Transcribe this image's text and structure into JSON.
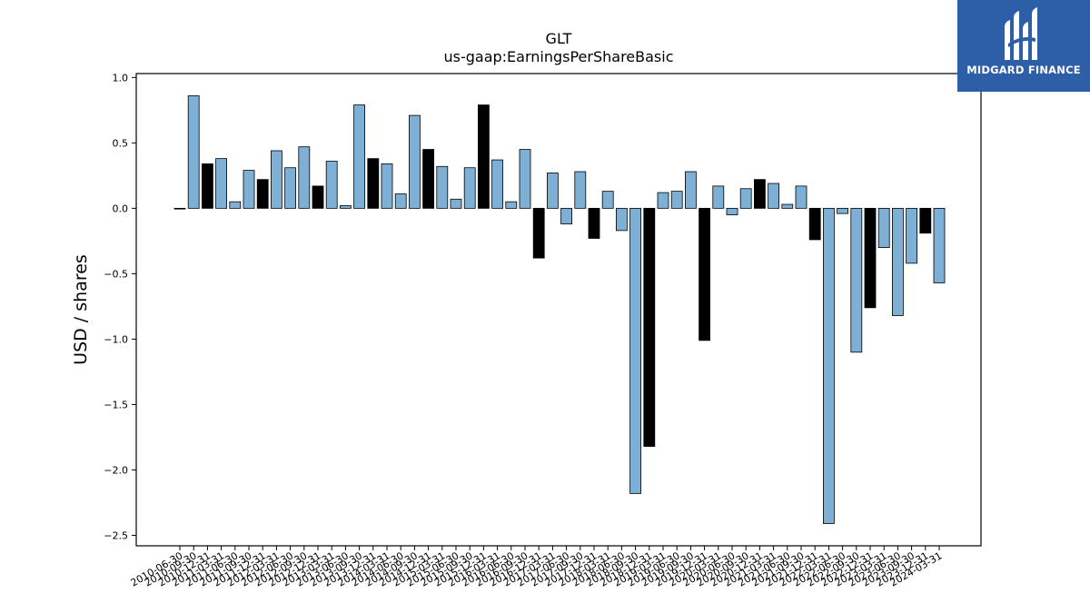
{
  "brand": {
    "name": "MIDGARD FINANCE",
    "background": "#2d5ea8"
  },
  "chart_data": {
    "type": "bar",
    "title": "GLT",
    "subtitle": "us-gaap:EarningsPerShareBasic",
    "ylabel": "USD / shares",
    "xlabel": "",
    "ylim": [
      -2.58,
      1.03
    ],
    "yticks": [
      1.0,
      0.5,
      0.0,
      -0.5,
      -1.0,
      -1.5,
      -2.0,
      -2.5
    ],
    "ytick_labels": [
      "1.0",
      "0.5",
      "0.0",
      "−0.5",
      "−1.0",
      "−1.5",
      "−2.0",
      "−2.5"
    ],
    "grid": false,
    "colors": {
      "quarter": "#7eb0d5",
      "annual": "#000000"
    },
    "categories": [
      "2010-06-30",
      "2010-09-30",
      "2010-12-31",
      "2011-03-31",
      "2011-06-30",
      "2011-09-30",
      "2011-12-31",
      "2012-03-31",
      "2012-06-30",
      "2012-09-30",
      "2012-12-31",
      "2013-03-31",
      "2013-06-30",
      "2013-09-30",
      "2013-12-31",
      "2014-03-31",
      "2014-06-30",
      "2014-09-30",
      "2014-12-31",
      "2015-03-31",
      "2015-06-30",
      "2015-09-30",
      "2015-12-31",
      "2016-03-31",
      "2016-06-30",
      "2016-09-30",
      "2016-12-31",
      "2017-03-31",
      "2017-06-30",
      "2017-09-30",
      "2017-12-31",
      "2018-03-31",
      "2018-06-30",
      "2018-09-30",
      "2018-12-31",
      "2019-03-31",
      "2019-06-30",
      "2019-09-30",
      "2019-12-31",
      "2020-03-31",
      "2020-06-30",
      "2020-09-30",
      "2020-12-31",
      "2021-03-31",
      "2021-06-30",
      "2021-09-30",
      "2021-12-31",
      "2022-03-31",
      "2022-06-30",
      "2022-09-30",
      "2022-12-31",
      "2023-03-31",
      "2023-06-30",
      "2023-09-30",
      "2023-12-31",
      "2024-03-31"
    ],
    "tick_labels": [
      "2010-06-30",
      "2010-09-30",
      "2010-12-31",
      "2011-03-31",
      "2011-06-30",
      "2011-09-30",
      "2011-12-31",
      "2012-03-31",
      "2012-06-30",
      "2012-09-30",
      "2012-12-31",
      "2013-03-31",
      "2013-06-30",
      "2013-09-30",
      "2013-12-31",
      "2014-03-31",
      "2014-06-30",
      "2014-09-30",
      "2014-12-31",
      "2015-03-31",
      "2015-06-30",
      "2015-09-30",
      "2015-12-31",
      "2016-03-31",
      "2016-06-30",
      "2016-09-30",
      "2016-12-31",
      "2017-03-31",
      "2017-06-30",
      "2017-09-30",
      "2017-12-31",
      "2018-03-31",
      "2018-06-30",
      "2018-09-30",
      "2018-12-31",
      "2019-03-31",
      "2019-06-30",
      "2019-09-30",
      "2019-12-31",
      "2020-03-31",
      "2020-06-30",
      "2020-09-30",
      "2020-12-31",
      "2021-03-31",
      "2021-06-30",
      "2021-09-30",
      "2021-12-31",
      "2022-03-31",
      "2022-06-30",
      "2022-09-30",
      "2022-12-31",
      "2023-03-31",
      "2023-06-30",
      "2023-09-30",
      "2023-12-31",
      "2024-03-31"
    ],
    "values": [
      0.0,
      0.86,
      0.34,
      0.38,
      0.05,
      0.29,
      0.22,
      0.44,
      0.31,
      0.47,
      0.17,
      0.36,
      0.02,
      0.79,
      0.38,
      0.34,
      0.11,
      0.71,
      0.45,
      0.32,
      0.07,
      0.31,
      0.79,
      0.37,
      0.05,
      0.45,
      -0.38,
      0.27,
      -0.12,
      0.28,
      -0.23,
      0.13,
      -0.17,
      -2.18,
      -1.82,
      0.12,
      0.13,
      0.28,
      -1.01,
      0.17,
      -0.05,
      0.15,
      0.22,
      0.19,
      0.03,
      0.17,
      -0.24,
      -2.41,
      -0.04,
      -1.1,
      -0.76,
      -0.3,
      -0.82,
      -0.42,
      -0.19,
      -0.57
    ],
    "annual": [
      false,
      false,
      true,
      false,
      false,
      false,
      true,
      false,
      false,
      false,
      true,
      false,
      false,
      false,
      true,
      false,
      false,
      false,
      true,
      false,
      false,
      false,
      true,
      false,
      false,
      false,
      true,
      false,
      false,
      false,
      true,
      false,
      false,
      false,
      true,
      false,
      false,
      false,
      true,
      false,
      false,
      false,
      true,
      false,
      false,
      false,
      true,
      false,
      false,
      false,
      true,
      false,
      false,
      false,
      true,
      false
    ]
  }
}
